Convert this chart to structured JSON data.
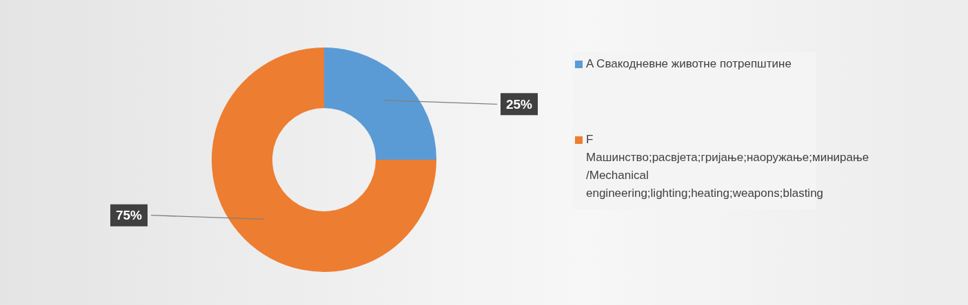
{
  "chart_data": {
    "type": "donut",
    "categories": [
      "A Свакодневне животне потрепштине",
      "F Машинство;расвјета;гријање;наоружање;минирање /Mechanical engineering;lighting;heating;weapons;blasting"
    ],
    "values": [
      25,
      75
    ],
    "colors": [
      "#5b9bd5",
      "#ed7d31"
    ],
    "value_labels": [
      "25%",
      "75%"
    ],
    "legend": "right"
  }
}
